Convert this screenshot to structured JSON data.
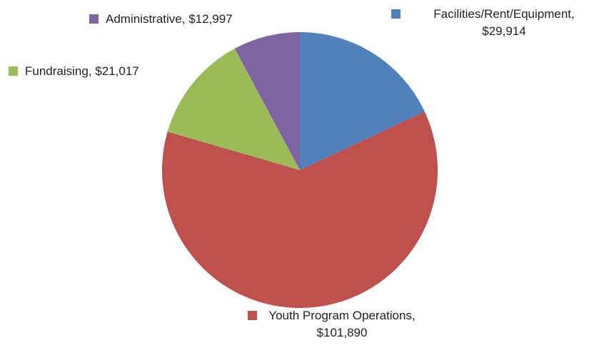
{
  "chart_data": {
    "type": "pie",
    "categories": [
      "Facilities/Rent/Equipment",
      "Youth Program Operations",
      "Fundraising",
      "Administrative"
    ],
    "values": [
      29914,
      101890,
      21017,
      12997
    ],
    "value_labels": [
      "Facilities/Rent/Equipment, $29,914",
      "Youth Program Operations, $101,890",
      "Fundraising, $21,017",
      "Administrative, $12,997"
    ],
    "colors": [
      "#4f81bd",
      "#c0504d",
      "#9bbb59",
      "#8064a2"
    ]
  }
}
